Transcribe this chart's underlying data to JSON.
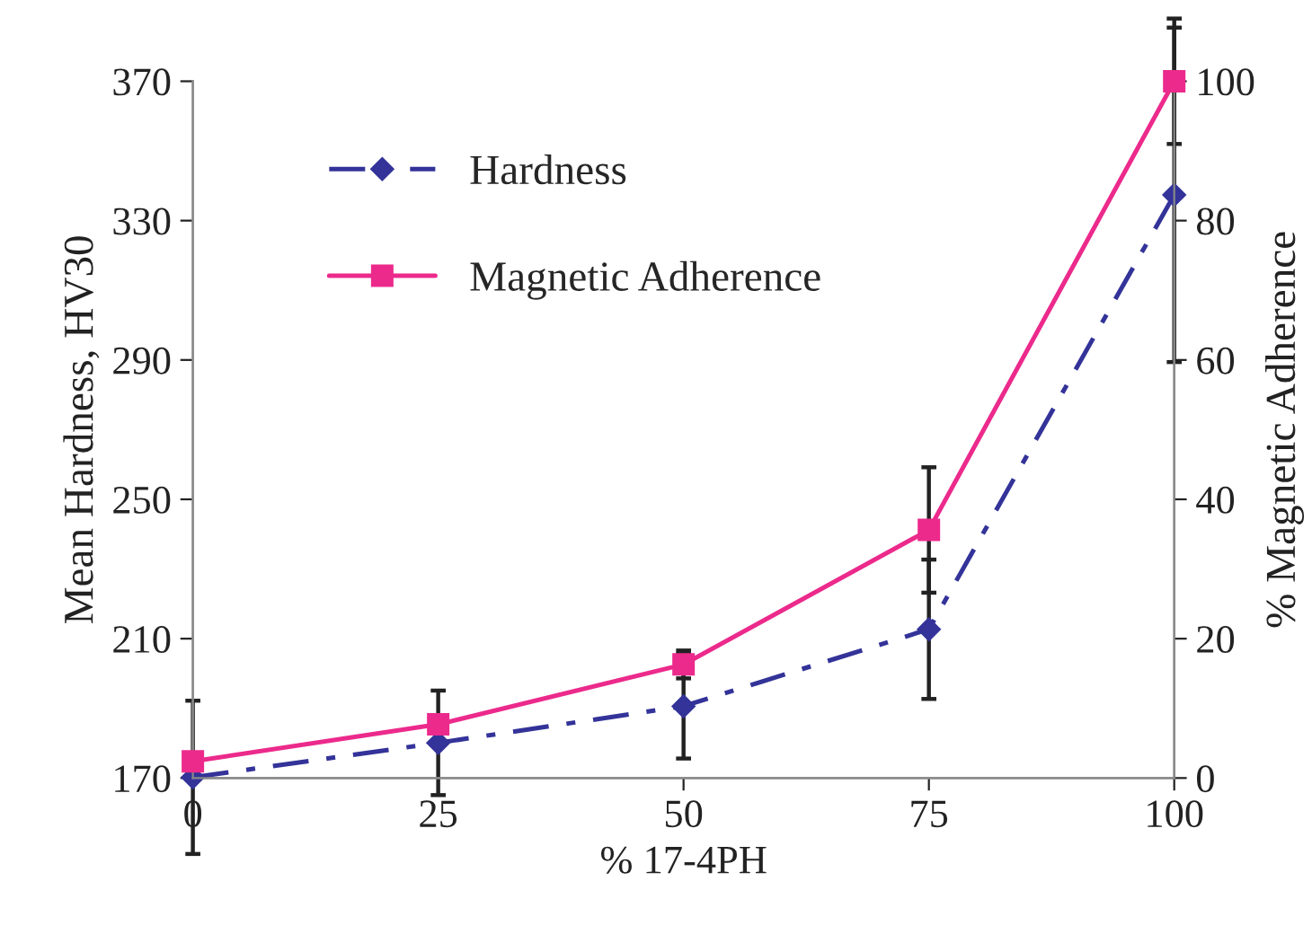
{
  "chart_data": {
    "type": "line",
    "xlabel": "% 17-4PH",
    "ylabel": "Mean Hardness, HV30",
    "y2label": "% Magnetic Adherence",
    "x": [
      0,
      25,
      50,
      75,
      100
    ],
    "series": [
      {
        "name": "Hardness",
        "color": "#333399",
        "values": [
          170.2,
          180.1,
          190.6,
          212.7,
          337.4
        ],
        "errors": [
          22,
          15,
          15,
          20,
          48
        ],
        "marker": "diamond",
        "line_style": "dashdot"
      },
      {
        "name": "Magnetic Adherence",
        "color": "#ec2a8c",
        "axis": "y2",
        "values": [
          2.4,
          7.7,
          16.3,
          35.6,
          100
        ],
        "errors": [
          null,
          null,
          2,
          9,
          9
        ],
        "marker": "square",
        "line_style": "solid"
      }
    ],
    "xlim": [
      0,
      100
    ],
    "xticks": [
      0,
      25,
      50,
      75,
      100
    ],
    "ylim": [
      170,
      370
    ],
    "yticks": [
      170,
      210,
      250,
      290,
      330,
      370
    ],
    "y2lim": [
      0,
      100
    ],
    "y2ticks": [
      0,
      20,
      40,
      60,
      80,
      100
    ],
    "grid": false,
    "legend": "top left"
  }
}
